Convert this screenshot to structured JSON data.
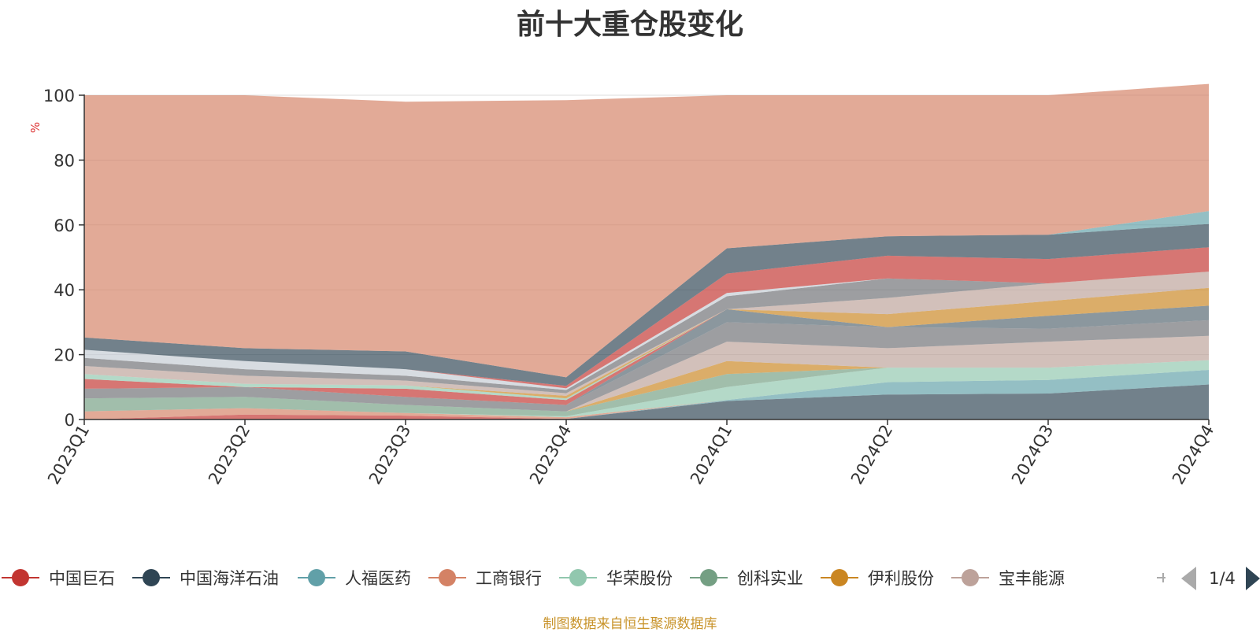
{
  "chart_data": {
    "type": "area",
    "stacked": true,
    "title": "前十大重仓股变化",
    "ylabel": "%",
    "ylim": [
      0,
      100
    ],
    "yticks": [
      "0",
      "20",
      "40",
      "60",
      "80",
      "100"
    ],
    "categories": [
      "2023Q1",
      "2023Q2",
      "2023Q3",
      "2023Q4",
      "2024Q1",
      "2024Q2",
      "2024Q3",
      "2024Q4"
    ],
    "grid": true,
    "series": [
      {
        "name": "中国巨石",
        "color": "#c23531",
        "values": [
          0.0,
          1.5,
          1.2,
          0.2,
          0.0,
          0.0,
          0.0,
          0.0
        ]
      },
      {
        "name": "中国海洋石油",
        "color": "#2f4554",
        "values": [
          0.0,
          0.0,
          0.0,
          0.0,
          5.7,
          7.7,
          8.0,
          10.8
        ]
      },
      {
        "name": "人福医药",
        "color": "#61a0a8",
        "values": [
          0.0,
          0.0,
          0.0,
          0.0,
          0.3,
          3.8,
          4.2,
          4.5
        ]
      },
      {
        "name": "工商银行",
        "color": "#d48265",
        "values": [
          2.5,
          2.0,
          0.8,
          0.5,
          0.0,
          0.0,
          0.0,
          0.0
        ]
      },
      {
        "name": "华荣股份",
        "color": "#91c7ae",
        "values": [
          0.0,
          0.0,
          0.0,
          0.3,
          4.0,
          4.5,
          3.8,
          3.0
        ]
      },
      {
        "name": "创科实业",
        "color": "#749f83",
        "values": [
          4.0,
          3.5,
          2.5,
          1.5,
          4.0,
          0.0,
          0.0,
          0.0
        ]
      },
      {
        "name": "伊利股份",
        "color": "#ca8622",
        "values": [
          0.0,
          0.0,
          0.0,
          0.0,
          4.0,
          0.0,
          0.0,
          0.0
        ]
      },
      {
        "name": "宝丰能源",
        "color": "#bda29a",
        "values": [
          0.0,
          0.0,
          0.0,
          0.0,
          6.0,
          6.0,
          8.0,
          7.5
        ]
      },
      {
        "name": "",
        "color": "#6e7074",
        "values": [
          3.0,
          3.0,
          2.5,
          2.0,
          6.0,
          6.5,
          4.0,
          4.8
        ]
      },
      {
        "name": "",
        "color": "#546570",
        "values": [
          0.0,
          0.0,
          0.0,
          0.0,
          4.0,
          0.0,
          4.0,
          4.5
        ]
      },
      {
        "name": "",
        "color": "#c4ccd3",
        "values": [
          0.0,
          0.0,
          0.0,
          0.0,
          0.0,
          0.0,
          0.0,
          0.0
        ]
      },
      {
        "name": "",
        "color": "#c23531",
        "values": [
          3.0,
          0.0,
          2.5,
          1.5,
          0.0,
          0.0,
          0.0,
          0.0
        ]
      },
      {
        "name": "",
        "color": "#91c7ae",
        "values": [
          1.5,
          1.0,
          1.0,
          0.5,
          0.0,
          0.0,
          0.0,
          0.0
        ]
      },
      {
        "name": "",
        "color": "#ca8622",
        "values": [
          0.0,
          0.0,
          0.0,
          0.8,
          0.0,
          4.0,
          4.5,
          5.5
        ]
      },
      {
        "name": "",
        "color": "#bda29a",
        "values": [
          2.5,
          2.5,
          1.5,
          0.8,
          0.0,
          5.0,
          5.5,
          5.0
        ]
      },
      {
        "name": "",
        "color": "#6e7074",
        "values": [
          2.5,
          2.0,
          1.5,
          1.0,
          4.0,
          6.0,
          0.0,
          0.0
        ]
      },
      {
        "name": "",
        "color": "#c4ccd3",
        "values": [
          2.5,
          2.5,
          2.0,
          0.5,
          1.0,
          0.0,
          0.0,
          0.0
        ]
      },
      {
        "name": "",
        "color": "#c23531",
        "values": [
          0.0,
          0.0,
          0.0,
          0.8,
          6.0,
          7.0,
          7.5,
          7.5
        ]
      },
      {
        "name": "",
        "color": "#2f4554",
        "values": [
          3.8,
          4.0,
          5.5,
          2.6,
          7.8,
          6.0,
          7.5,
          7.2
        ]
      },
      {
        "name": "",
        "color": "#61a0a8",
        "values": [
          0.0,
          0.0,
          0.0,
          0.0,
          0.0,
          0.0,
          0.0,
          4.0
        ]
      },
      {
        "name": "",
        "color": "#d48265",
        "values": [
          74.7,
          78.0,
          77.0,
          85.5,
          47.2,
          43.5,
          43.0,
          39.2
        ]
      }
    ]
  },
  "legend": {
    "items": [
      {
        "label": "中国巨石",
        "color": "#c23531"
      },
      {
        "label": "中国海洋石油",
        "color": "#2f4554"
      },
      {
        "label": "人福医药",
        "color": "#61a0a8"
      },
      {
        "label": "工商银行",
        "color": "#d48265"
      },
      {
        "label": "华荣股份",
        "color": "#91c7ae"
      },
      {
        "label": "创科实业",
        "color": "#749f83"
      },
      {
        "label": "伊利股份",
        "color": "#ca8622"
      },
      {
        "label": "宝丰能源",
        "color": "#bda29a"
      }
    ],
    "page_indicator": "1/4",
    "arrow_color_disabled": "#aaaaaa",
    "arrow_color_active": "#2f4554"
  },
  "footer": {
    "note": "制图数据来自恒生聚源数据库"
  }
}
